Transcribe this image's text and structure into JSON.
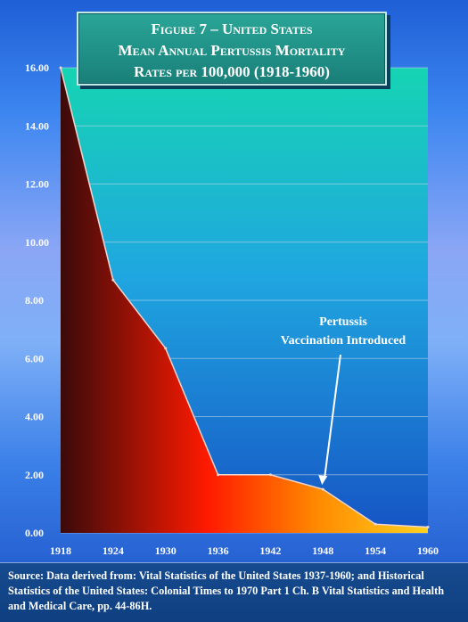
{
  "title": {
    "line1": "Figure 7 – United States",
    "line2": "Mean Annual Pertussis Mortality",
    "line3": "Rates per 100,000 (1918-1960)"
  },
  "source": "Source: Data derived from: Vital Statistics of the United States 1937-1960; and Historical Statistics of the United States: Colonial Times to 1970 Part 1 Ch. B Vital Statistics and Health and Medical Care,  pp. 44-86H.",
  "annotation": {
    "line1": "Pertussis",
    "line2": "Vaccination Introduced",
    "target_year": 1948
  },
  "colors": {
    "plot_top": "#16d4b3",
    "plot_mid": "#1fa6e0",
    "plot_bottom": "#1654c4",
    "area_left": "#3a0a0a",
    "area_red": "#ff1a00",
    "area_orange": "#ff8a00",
    "area_right": "#ffd21f",
    "gridline": "#c9d7ea"
  },
  "chart_data": {
    "type": "area",
    "title": "Figure 7 – United States Mean Annual Pertussis Mortality Rates per 100,000 (1918-1960)",
    "xlabel": "",
    "ylabel": "",
    "x": [
      1918,
      1924,
      1930,
      1936,
      1942,
      1948,
      1954,
      1960
    ],
    "values": [
      16.0,
      8.7,
      6.35,
      2.0,
      2.0,
      1.5,
      0.3,
      0.2
    ],
    "x_tick_labels": [
      "1918",
      "1924",
      "1930",
      "1936",
      "1942",
      "1948",
      "1954",
      "1960"
    ],
    "y_tick_labels": [
      "0.00",
      "2.00",
      "4.00",
      "6.00",
      "8.00",
      "10.00",
      "12.00",
      "14.00",
      "16.00"
    ],
    "xlim": [
      1918,
      1960
    ],
    "ylim": [
      0,
      16
    ],
    "grid": true,
    "legend": "none"
  }
}
